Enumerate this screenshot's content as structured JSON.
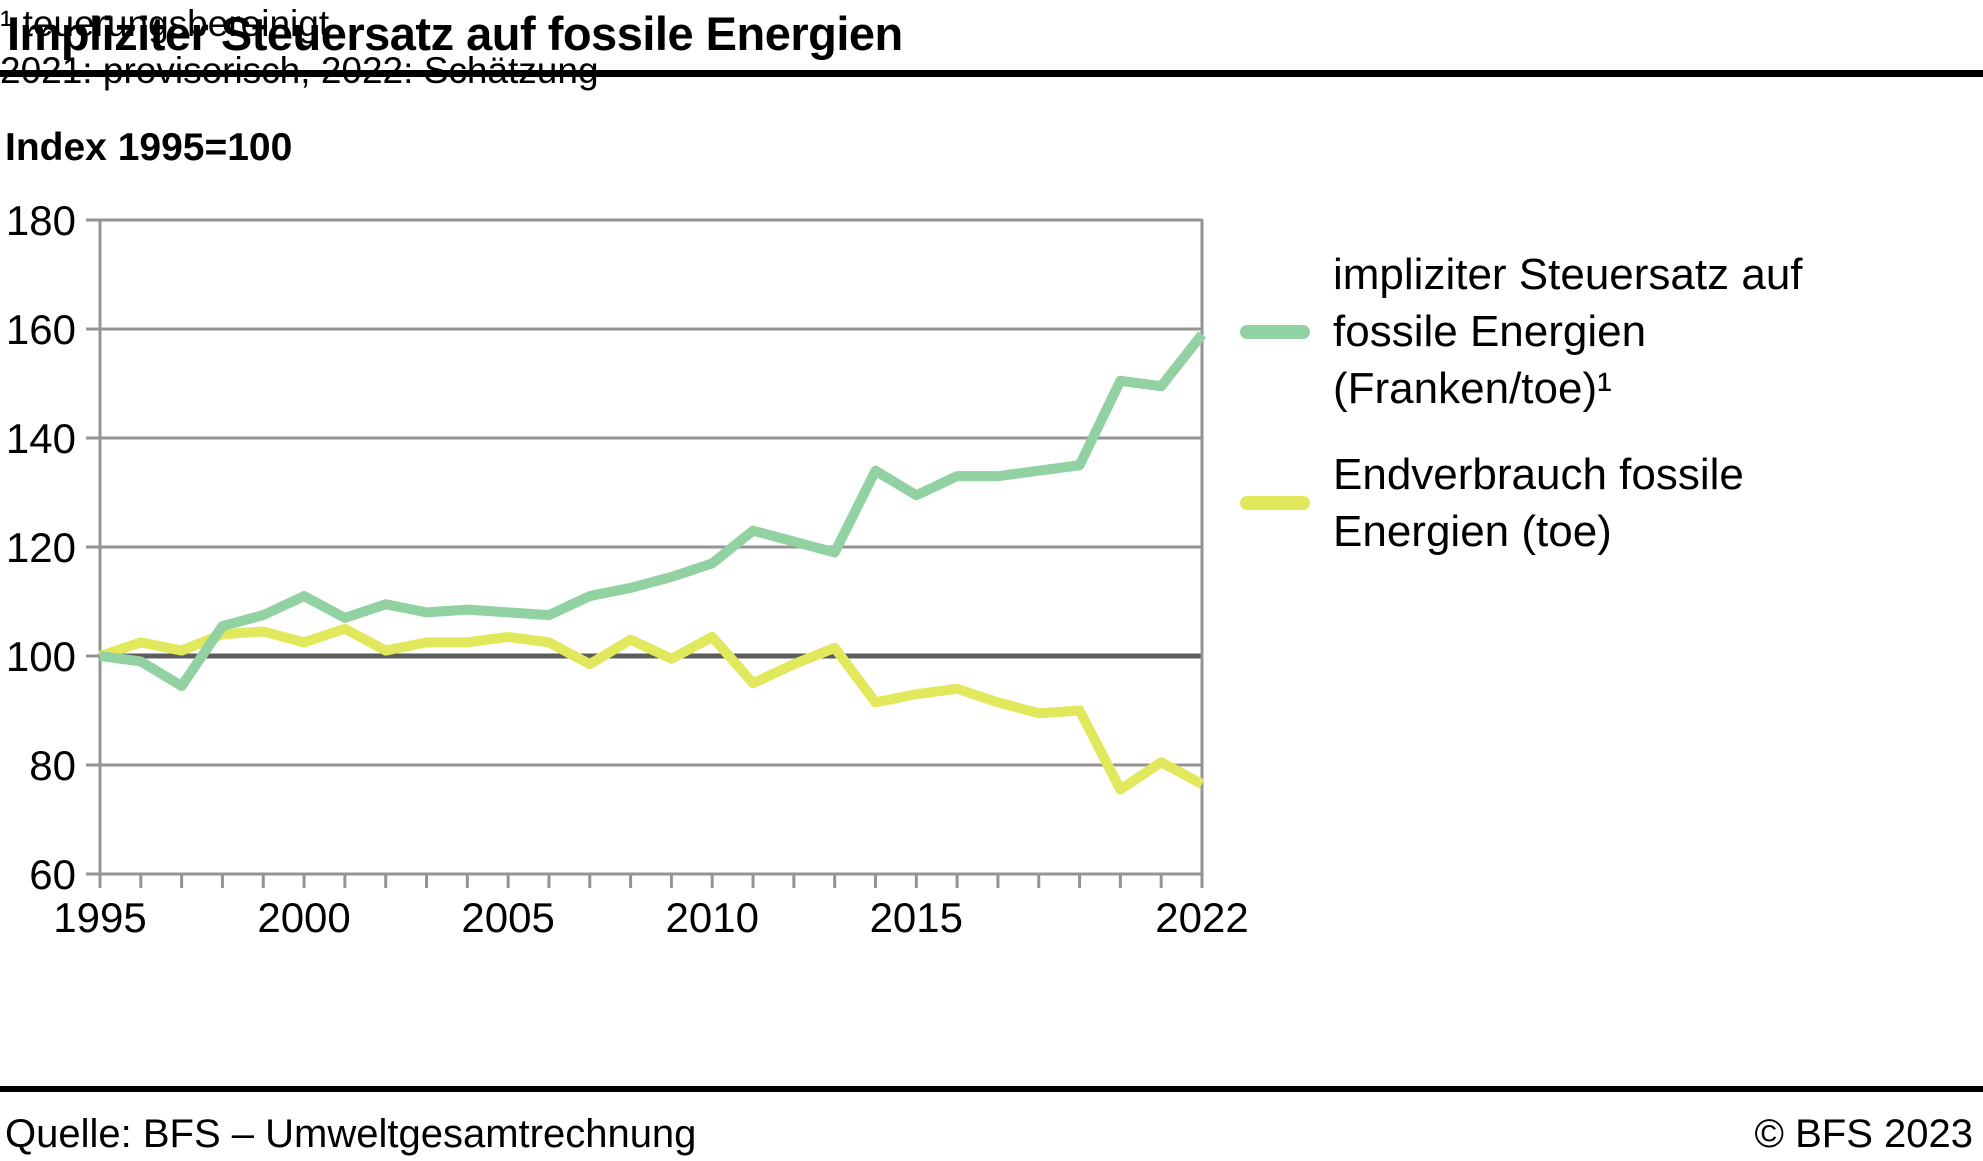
{
  "header": {
    "title": "Impliziter Steuersatz auf fossile Energien",
    "subtitle": "Index 1995=100"
  },
  "footnotes": {
    "line1": "¹  teuerungsbereinigt",
    "line2": "2021: provisorisch, 2022: Schätzung"
  },
  "footer": {
    "source": "Quelle: BFS – Umweltgesamtrechnung",
    "copyright": "© BFS 2023"
  },
  "chart_data": {
    "type": "line",
    "title": "Impliziter Steuersatz auf fossile Energien",
    "ylabel": "Index 1995=100",
    "x": [
      1995,
      1996,
      1997,
      1998,
      1999,
      2000,
      2001,
      2002,
      2003,
      2004,
      2005,
      2006,
      2007,
      2008,
      2009,
      2010,
      2011,
      2012,
      2013,
      2014,
      2015,
      2016,
      2017,
      2018,
      2019,
      2020,
      2021,
      2022
    ],
    "xlim": [
      1995,
      2022
    ],
    "ylim": [
      60,
      180
    ],
    "y_ticks": [
      60,
      80,
      100,
      120,
      140,
      160,
      180
    ],
    "x_tick_labels": [
      1995,
      2000,
      2005,
      2010,
      2015,
      2022
    ],
    "baseline": 100,
    "grid": "horizontal-only",
    "legend_position": "right",
    "colors": {
      "grid": "#949494",
      "baseline": "#5c5c5c",
      "background": "#ffffff"
    },
    "series": [
      {
        "id": "impliziter-steuersatz",
        "legend_label": "impliziter Steuersatz auf\nfossile Energien\n(Franken/toe)¹",
        "color": "#92d1a1",
        "values": [
          100,
          99,
          94.5,
          105.5,
          107.5,
          111,
          107,
          109.5,
          108,
          108.5,
          108,
          107.5,
          111,
          112.5,
          114.5,
          117,
          123,
          121,
          119,
          134,
          129.5,
          133,
          133,
          134,
          135,
          150.5,
          149.5,
          159
        ]
      },
      {
        "id": "endverbrauch",
        "legend_label": "Endverbrauch fossile\nEnergien (toe)",
        "color": "#e2e85c",
        "values": [
          100,
          102.5,
          101,
          104,
          104.5,
          102.5,
          105,
          101,
          102.5,
          102.5,
          103.5,
          102.5,
          98.5,
          103,
          99.5,
          103.5,
          95,
          98.5,
          101.5,
          91.5,
          93,
          94,
          91.5,
          89.5,
          90,
          75.5,
          80.5,
          76.5
        ]
      }
    ]
  }
}
